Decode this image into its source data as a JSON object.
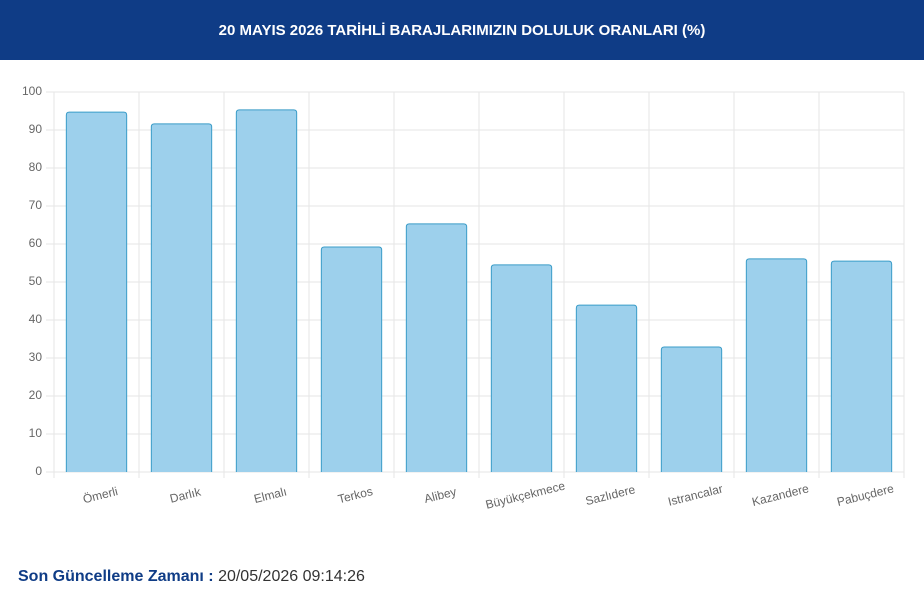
{
  "chart_data": {
    "type": "bar",
    "title": "20 MAYIS 2026 TARİHLİ BARAJLARIMIZIN DOLULUK ORANLARI (%)",
    "categories": [
      "Ömerli",
      "Darlık",
      "Elmalı",
      "Terkos",
      "Alibey",
      "Büyükçekmece",
      "Sazlıdere",
      "Istrancalar",
      "Kazandere",
      "Pabuçdere"
    ],
    "values": [
      94.7,
      91.6,
      95.3,
      59.2,
      65.3,
      54.5,
      43.9,
      32.9,
      56.1,
      55.5
    ],
    "color": "#9dd0ec",
    "border_color": "#3a9cc8",
    "ylim": [
      0,
      100
    ],
    "yticks": [
      0,
      10,
      20,
      30,
      40,
      50,
      60,
      70,
      80,
      90,
      100
    ],
    "grid": true
  },
  "footer": {
    "label": "Son Güncelleme Zamanı :",
    "timestamp": "20/05/2026 09:14:26"
  }
}
